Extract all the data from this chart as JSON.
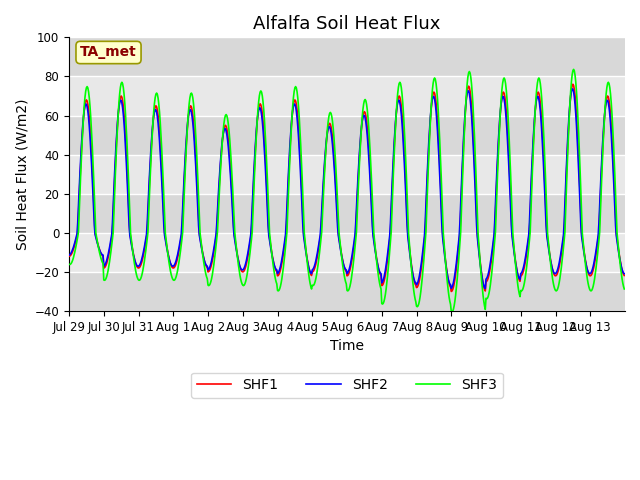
{
  "title": "Alfalfa Soil Heat Flux",
  "ylabel": "Soil Heat Flux (W/m2)",
  "xlabel": "Time",
  "ylim": [
    -40,
    100
  ],
  "yticks": [
    -40,
    -20,
    0,
    20,
    40,
    60,
    80,
    100
  ],
  "line_colors": [
    "red",
    "blue",
    "lime"
  ],
  "line_labels": [
    "SHF1",
    "SHF2",
    "SHF3"
  ],
  "annotation_text": "TA_met",
  "annotation_color": "#8B0000",
  "annotation_bg": "#FFFFCC",
  "bg_color": "#E8E8E8",
  "num_days": 16,
  "points_per_day": 48,
  "title_fontsize": 13,
  "axis_label_fontsize": 10,
  "tick_label_fontsize": 8.5,
  "legend_fontsize": 10,
  "tick_positions": [
    0,
    1,
    2,
    3,
    4,
    5,
    6,
    7,
    8,
    9,
    10,
    11,
    12,
    13,
    14,
    15
  ],
  "tick_labels": [
    "Jul 29",
    "Jul 30",
    "Jul 31",
    "Aug 1",
    "Aug 2",
    "Aug 3",
    "Aug 4",
    "Aug 5",
    "Aug 6",
    "Aug 7",
    "Aug 8",
    "Aug 9",
    "Aug 10",
    "Aug 11",
    "Aug 12",
    "Aug 13"
  ],
  "base_amps": [
    68,
    70,
    65,
    65,
    55,
    66,
    68,
    56,
    62,
    70,
    72,
    75,
    72,
    72,
    76,
    70
  ],
  "trough_amps": [
    12,
    18,
    18,
    18,
    20,
    20,
    22,
    20,
    22,
    27,
    28,
    30,
    25,
    22,
    22,
    22
  ]
}
